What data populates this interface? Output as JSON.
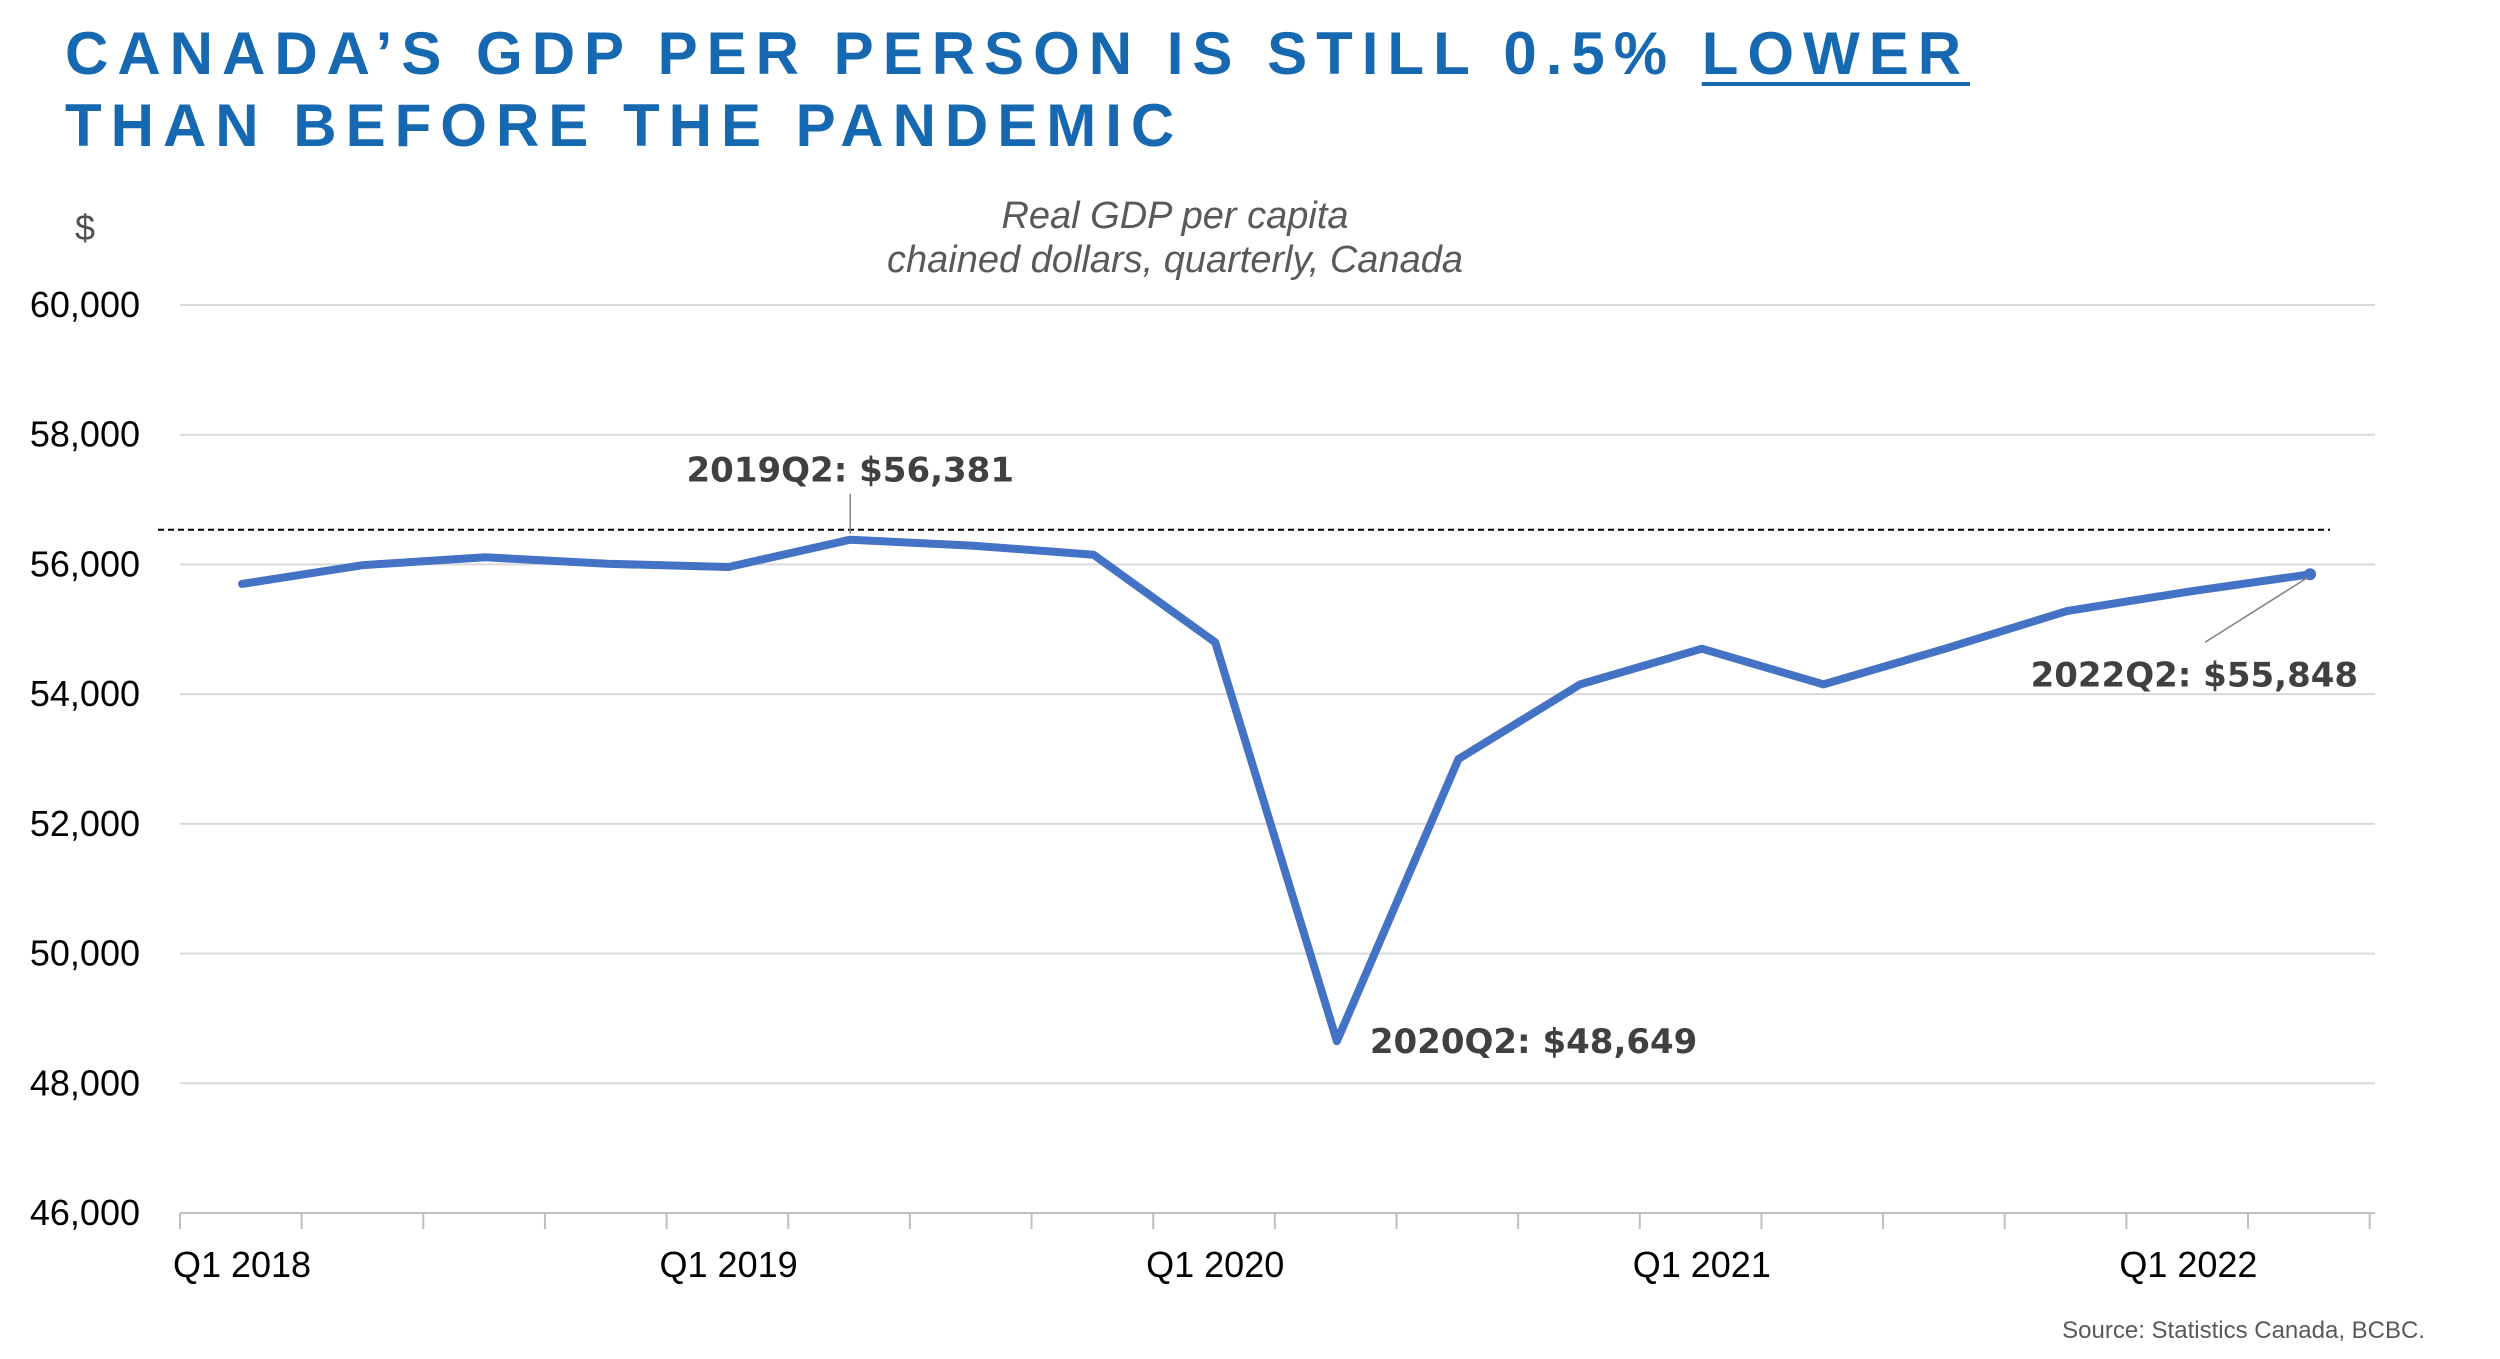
{
  "headline": {
    "line1_prefix": "CANADA’S GDP PER PERSON IS STILL 0.5%",
    "line1_emphasis": "LOWER",
    "line2": "THAN BEFORE THE PANDEMIC"
  },
  "colors": {
    "headline": "#1669b0",
    "series": "#4472c4",
    "grid": "#d9d9d9"
  },
  "chart_data": {
    "type": "line",
    "ylabel": "$",
    "subtitle_line1": "Real GDP per capita",
    "subtitle_line2": "chained dollars, quarterly, Canada",
    "ylim": [
      46000,
      60000
    ],
    "y_ticks": [
      "60,000",
      "58,000",
      "56,000",
      "54,000",
      "52,000",
      "50,000",
      "48,000",
      "46,000"
    ],
    "y_tick_values": [
      60000,
      58000,
      56000,
      54000,
      52000,
      50000,
      48000,
      46000
    ],
    "x_tick_labels": [
      "Q1 2018",
      "Q1 2019",
      "Q1 2020",
      "Q1 2021",
      "Q1 2022"
    ],
    "grid": true,
    "quarters": [
      "2018Q1",
      "2018Q2",
      "2018Q3",
      "2018Q4",
      "2019Q1",
      "2019Q2",
      "2019Q3",
      "2019Q4",
      "2020Q1",
      "2020Q2",
      "2020Q3",
      "2020Q4",
      "2021Q1",
      "2021Q2",
      "2021Q3",
      "2021Q4",
      "2022Q1",
      "2022Q2"
    ],
    "values": [
      55700,
      55990,
      56110,
      56010,
      55960,
      56381,
      56290,
      56150,
      54800,
      48649,
      53000,
      54150,
      54700,
      54150,
      54700,
      55280,
      55580,
      55848
    ],
    "reference_line": 56381,
    "annotations": [
      {
        "label": "2019Q2: $56,381",
        "quarter": "2019Q2"
      },
      {
        "label": "2020Q2: $48,649",
        "quarter": "2020Q2"
      },
      {
        "label": "2022Q2: $55,848",
        "quarter": "2022Q2"
      }
    ],
    "source": "Source: Statistics Canada, BCBC."
  }
}
